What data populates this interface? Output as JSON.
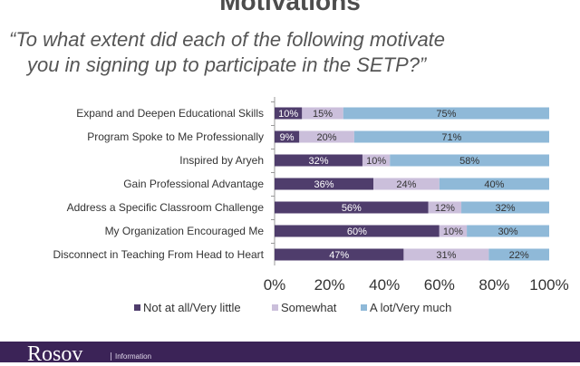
{
  "header": {
    "title": "Motivations",
    "question_line1": "“To what extent did each of the following motivate",
    "question_line2": "you in signing up to participate in the SETP?”"
  },
  "footer": {
    "logo_text": "Rosov",
    "logo_sub": "Information"
  },
  "chart_data": {
    "type": "bar",
    "orientation": "horizontal",
    "stacked": true,
    "percent_stacked": true,
    "categories": [
      "Expand and Deepen Educational Skills",
      "Program Spoke to Me Professionally",
      "Inspired by Aryeh",
      "Gain Professional Advantage",
      "Address a Specific Classroom Challenge",
      "My Organization Encouraged Me",
      "Disconnect in Teaching From Head to Heart"
    ],
    "series": [
      {
        "name": "Not at all/Very little",
        "values": [
          10,
          9,
          32,
          36,
          56,
          60,
          47
        ],
        "labels": [
          "10%",
          "9%",
          "32%",
          "36%",
          "56%",
          "60%",
          "47%"
        ],
        "color": "#4f3d6c",
        "label_color": "#ffffff"
      },
      {
        "name": "Somewhat",
        "values": [
          15,
          20,
          10,
          24,
          12,
          10,
          31
        ],
        "labels": [
          "15%",
          "20%",
          "10%",
          "24%",
          "12%",
          "10%",
          "31%"
        ],
        "color": "#cbbfdb",
        "label_color": "#333333"
      },
      {
        "name": "A lot/Very much",
        "values": [
          75,
          71,
          58,
          40,
          32,
          30,
          22
        ],
        "labels": [
          "75%",
          "71%",
          "58%",
          "40%",
          "32%",
          "30%",
          "22%"
        ],
        "color": "#8fb9d8",
        "label_color": "#333333"
      }
    ],
    "x_ticks": [
      "0%",
      "20%",
      "40%",
      "60%",
      "80%",
      "100%"
    ],
    "xlim": [
      0,
      100
    ],
    "legend_position": "bottom",
    "grid": false
  }
}
